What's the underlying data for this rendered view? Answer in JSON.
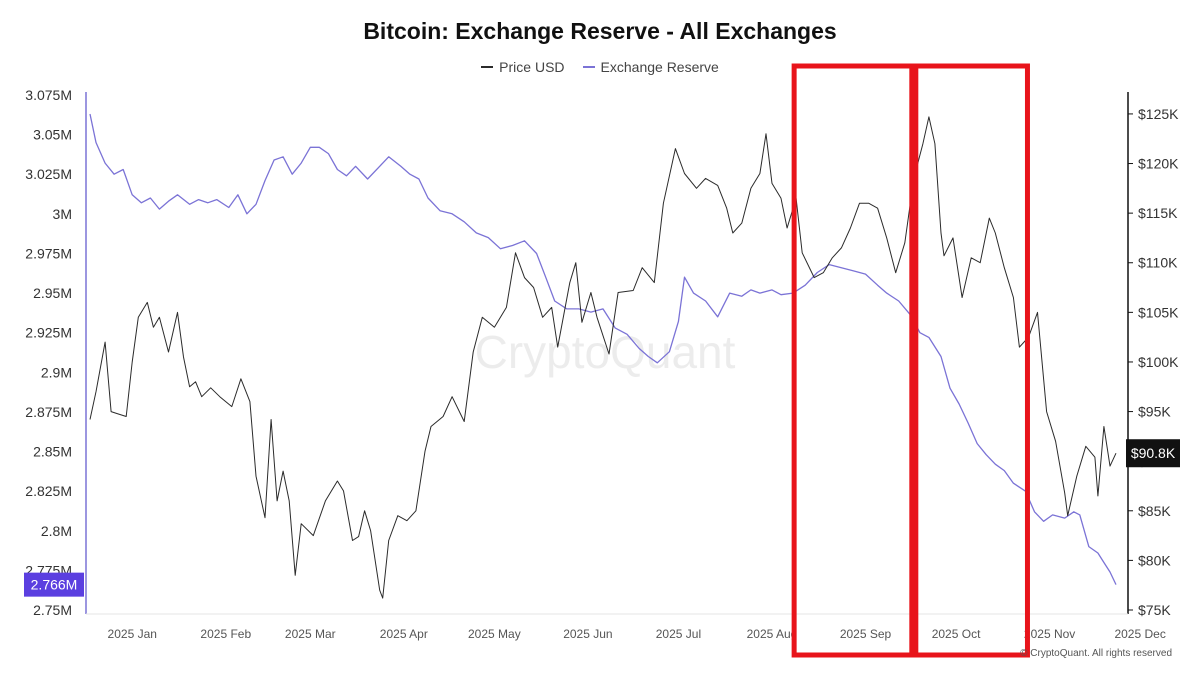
{
  "chart_data": {
    "type": "line",
    "title": "Bitcoin: Exchange Reserve - All Exchanges",
    "legend": [
      "Price USD",
      "Exchange Reserve"
    ],
    "legend_placement": "top-center",
    "colors": {
      "price": "#2b2b2b",
      "reserve": "#7b73d6",
      "highlight_box": "#e8141b",
      "badge_left": "#5b3fe0",
      "badge_right": "#111111"
    },
    "grid": false,
    "watermark": "CryptoQuant",
    "copyright": "© CryptoQuant. All rights reserved",
    "x_labels": [
      "2025 Jan",
      "2025 Feb",
      "2025 Mar",
      "2025 Apr",
      "2025 May",
      "2025 Jun",
      "2025 Jul",
      "2025 Aug",
      "2025 Sep",
      "2025 Oct",
      "2025 Nov",
      "2025 Dec"
    ],
    "x_range": [
      "2025-01-01",
      "2025-12-07"
    ],
    "y_left": {
      "label": "",
      "range": [
        2750000,
        3075000
      ],
      "ticks": [
        "3.075M",
        "3.05M",
        "3.025M",
        "3M",
        "2.975M",
        "2.95M",
        "2.925M",
        "2.9M",
        "2.875M",
        "2.85M",
        "2.825M",
        "2.8M",
        "2.775M",
        "2.75M"
      ],
      "current_value_label": "2.766M"
    },
    "y_right": {
      "label": "",
      "range": [
        75000,
        126000
      ],
      "ticks": [
        "$125K",
        "$120K",
        "$115K",
        "$110K",
        "$105K",
        "$100K",
        "$95K",
        "$90K",
        "$85K",
        "$80K",
        "$75K"
      ],
      "current_value_label": "$90.8K"
    },
    "highlights": [
      {
        "from": "2025-08-23",
        "to": "2025-10-01"
      },
      {
        "from": "2025-10-01",
        "to": "2025-11-07"
      }
    ],
    "series": [
      {
        "name": "Price USD",
        "axis": "right",
        "points": [
          [
            "2025-01-01",
            94200
          ],
          [
            "2025-01-03",
            97000
          ],
          [
            "2025-01-06",
            102000
          ],
          [
            "2025-01-08",
            95000
          ],
          [
            "2025-01-10",
            94800
          ],
          [
            "2025-01-13",
            94500
          ],
          [
            "2025-01-15",
            100000
          ],
          [
            "2025-01-17",
            104500
          ],
          [
            "2025-01-20",
            106000
          ],
          [
            "2025-01-22",
            103500
          ],
          [
            "2025-01-24",
            104500
          ],
          [
            "2025-01-27",
            101000
          ],
          [
            "2025-01-30",
            105000
          ],
          [
            "2025-02-01",
            100500
          ],
          [
            "2025-02-03",
            97500
          ],
          [
            "2025-02-05",
            98000
          ],
          [
            "2025-02-07",
            96500
          ],
          [
            "2025-02-10",
            97400
          ],
          [
            "2025-02-13",
            96500
          ],
          [
            "2025-02-17",
            95500
          ],
          [
            "2025-02-20",
            98300
          ],
          [
            "2025-02-23",
            96000
          ],
          [
            "2025-02-25",
            88500
          ],
          [
            "2025-02-28",
            84300
          ],
          [
            "2025-03-02",
            94200
          ],
          [
            "2025-03-04",
            86000
          ],
          [
            "2025-03-06",
            89000
          ],
          [
            "2025-03-08",
            86000
          ],
          [
            "2025-03-10",
            78500
          ],
          [
            "2025-03-12",
            83700
          ],
          [
            "2025-03-16",
            82500
          ],
          [
            "2025-03-20",
            86000
          ],
          [
            "2025-03-24",
            88000
          ],
          [
            "2025-03-26",
            87000
          ],
          [
            "2025-03-29",
            82000
          ],
          [
            "2025-03-31",
            82400
          ],
          [
            "2025-04-02",
            85000
          ],
          [
            "2025-04-04",
            83000
          ],
          [
            "2025-04-07",
            77000
          ],
          [
            "2025-04-08",
            76200
          ],
          [
            "2025-04-10",
            82000
          ],
          [
            "2025-04-13",
            84500
          ],
          [
            "2025-04-16",
            84000
          ],
          [
            "2025-04-19",
            85000
          ],
          [
            "2025-04-22",
            91000
          ],
          [
            "2025-04-24",
            93500
          ],
          [
            "2025-04-28",
            94500
          ],
          [
            "2025-05-01",
            96500
          ],
          [
            "2025-05-05",
            94000
          ],
          [
            "2025-05-08",
            101000
          ],
          [
            "2025-05-11",
            104500
          ],
          [
            "2025-05-15",
            103500
          ],
          [
            "2025-05-19",
            105500
          ],
          [
            "2025-05-22",
            111000
          ],
          [
            "2025-05-25",
            108500
          ],
          [
            "2025-05-28",
            107500
          ],
          [
            "2025-05-31",
            104500
          ],
          [
            "2025-06-03",
            105500
          ],
          [
            "2025-06-05",
            101500
          ],
          [
            "2025-06-09",
            108000
          ],
          [
            "2025-06-11",
            110000
          ],
          [
            "2025-06-13",
            104000
          ],
          [
            "2025-06-16",
            107000
          ],
          [
            "2025-06-18",
            104500
          ],
          [
            "2025-06-22",
            100800
          ],
          [
            "2025-06-25",
            107000
          ],
          [
            "2025-06-30",
            107200
          ],
          [
            "2025-07-03",
            109500
          ],
          [
            "2025-07-07",
            108000
          ],
          [
            "2025-07-10",
            116000
          ],
          [
            "2025-07-14",
            121500
          ],
          [
            "2025-07-17",
            119000
          ],
          [
            "2025-07-21",
            117500
          ],
          [
            "2025-07-24",
            118500
          ],
          [
            "2025-07-28",
            117800
          ],
          [
            "2025-07-31",
            115500
          ],
          [
            "2025-08-02",
            113000
          ],
          [
            "2025-08-05",
            114000
          ],
          [
            "2025-08-08",
            117500
          ],
          [
            "2025-08-11",
            119000
          ],
          [
            "2025-08-13",
            123000
          ],
          [
            "2025-08-15",
            118000
          ],
          [
            "2025-08-18",
            116500
          ],
          [
            "2025-08-20",
            113500
          ],
          [
            "2025-08-23",
            116500
          ],
          [
            "2025-08-25",
            111000
          ],
          [
            "2025-08-29",
            108500
          ],
          [
            "2025-09-01",
            109000
          ],
          [
            "2025-09-04",
            110500
          ],
          [
            "2025-09-07",
            111500
          ],
          [
            "2025-09-10",
            113500
          ],
          [
            "2025-09-13",
            116000
          ],
          [
            "2025-09-16",
            116000
          ],
          [
            "2025-09-19",
            115500
          ],
          [
            "2025-09-22",
            112500
          ],
          [
            "2025-09-25",
            109000
          ],
          [
            "2025-09-28",
            112000
          ],
          [
            "2025-10-01",
            118500
          ],
          [
            "2025-10-04",
            122000
          ],
          [
            "2025-10-06",
            124700
          ],
          [
            "2025-10-08",
            122000
          ],
          [
            "2025-10-10",
            113000
          ],
          [
            "2025-10-11",
            110700
          ],
          [
            "2025-10-14",
            112500
          ],
          [
            "2025-10-17",
            106500
          ],
          [
            "2025-10-20",
            110500
          ],
          [
            "2025-10-23",
            110000
          ],
          [
            "2025-10-26",
            114500
          ],
          [
            "2025-10-28",
            113000
          ],
          [
            "2025-10-31",
            109500
          ],
          [
            "2025-11-03",
            106500
          ],
          [
            "2025-11-05",
            101500
          ],
          [
            "2025-11-08",
            102500
          ],
          [
            "2025-11-11",
            105000
          ],
          [
            "2025-11-14",
            95000
          ],
          [
            "2025-11-17",
            92000
          ],
          [
            "2025-11-20",
            86800
          ],
          [
            "2025-11-21",
            84500
          ],
          [
            "2025-11-24",
            88500
          ],
          [
            "2025-11-27",
            91500
          ],
          [
            "2025-11-30",
            90400
          ],
          [
            "2025-12-01",
            86500
          ],
          [
            "2025-12-03",
            93500
          ],
          [
            "2025-12-05",
            89500
          ],
          [
            "2025-12-07",
            90800
          ]
        ]
      },
      {
        "name": "Exchange Reserve",
        "axis": "left",
        "points": [
          [
            "2025-01-01",
            3.063
          ],
          [
            "2025-01-03",
            3.045
          ],
          [
            "2025-01-06",
            3.032
          ],
          [
            "2025-01-09",
            3.025
          ],
          [
            "2025-01-12",
            3.028
          ],
          [
            "2025-01-15",
            3.012
          ],
          [
            "2025-01-18",
            3.007
          ],
          [
            "2025-01-21",
            3.01
          ],
          [
            "2025-01-24",
            3.003
          ],
          [
            "2025-01-27",
            3.008
          ],
          [
            "2025-01-30",
            3.012
          ],
          [
            "2025-02-03",
            3.006
          ],
          [
            "2025-02-06",
            3.009
          ],
          [
            "2025-02-09",
            3.007
          ],
          [
            "2025-02-12",
            3.009
          ],
          [
            "2025-02-16",
            3.004
          ],
          [
            "2025-02-19",
            3.012
          ],
          [
            "2025-02-22",
            3.0
          ],
          [
            "2025-02-25",
            3.006
          ],
          [
            "2025-02-28",
            3.021
          ],
          [
            "2025-03-03",
            3.034
          ],
          [
            "2025-03-06",
            3.036
          ],
          [
            "2025-03-09",
            3.025
          ],
          [
            "2025-03-12",
            3.032
          ],
          [
            "2025-03-15",
            3.042
          ],
          [
            "2025-03-18",
            3.042
          ],
          [
            "2025-03-21",
            3.038
          ],
          [
            "2025-03-24",
            3.028
          ],
          [
            "2025-03-27",
            3.024
          ],
          [
            "2025-03-30",
            3.03
          ],
          [
            "2025-04-03",
            3.022
          ],
          [
            "2025-04-07",
            3.03
          ],
          [
            "2025-04-10",
            3.036
          ],
          [
            "2025-04-14",
            3.03
          ],
          [
            "2025-04-17",
            3.025
          ],
          [
            "2025-04-20",
            3.022
          ],
          [
            "2025-04-23",
            3.01
          ],
          [
            "2025-04-27",
            3.002
          ],
          [
            "2025-05-01",
            3.0
          ],
          [
            "2025-05-05",
            2.995
          ],
          [
            "2025-05-09",
            2.988
          ],
          [
            "2025-05-13",
            2.985
          ],
          [
            "2025-05-17",
            2.978
          ],
          [
            "2025-05-21",
            2.98
          ],
          [
            "2025-05-25",
            2.983
          ],
          [
            "2025-05-29",
            2.975
          ],
          [
            "2025-06-01",
            2.96
          ],
          [
            "2025-06-04",
            2.945
          ],
          [
            "2025-06-08",
            2.94
          ],
          [
            "2025-06-12",
            2.94
          ],
          [
            "2025-06-16",
            2.938
          ],
          [
            "2025-06-20",
            2.94
          ],
          [
            "2025-06-24",
            2.928
          ],
          [
            "2025-06-28",
            2.924
          ],
          [
            "2025-07-02",
            2.915
          ],
          [
            "2025-07-05",
            2.91
          ],
          [
            "2025-07-08",
            2.906
          ],
          [
            "2025-07-12",
            2.913
          ],
          [
            "2025-07-15",
            2.932
          ],
          [
            "2025-07-17",
            2.96
          ],
          [
            "2025-07-20",
            2.95
          ],
          [
            "2025-07-24",
            2.945
          ],
          [
            "2025-07-28",
            2.935
          ],
          [
            "2025-08-01",
            2.95
          ],
          [
            "2025-08-05",
            2.948
          ],
          [
            "2025-08-08",
            2.952
          ],
          [
            "2025-08-11",
            2.95
          ],
          [
            "2025-08-15",
            2.952
          ],
          [
            "2025-08-18",
            2.949
          ],
          [
            "2025-08-22",
            2.95
          ],
          [
            "2025-08-26",
            2.955
          ],
          [
            "2025-08-30",
            2.963
          ],
          [
            "2025-09-03",
            2.968
          ],
          [
            "2025-09-07",
            2.966
          ],
          [
            "2025-09-11",
            2.964
          ],
          [
            "2025-09-15",
            2.962
          ],
          [
            "2025-09-19",
            2.955
          ],
          [
            "2025-09-22",
            2.95
          ],
          [
            "2025-09-26",
            2.945
          ],
          [
            "2025-09-30",
            2.936
          ],
          [
            "2025-10-03",
            2.925
          ],
          [
            "2025-10-06",
            2.922
          ],
          [
            "2025-10-10",
            2.91
          ],
          [
            "2025-10-13",
            2.89
          ],
          [
            "2025-10-16",
            2.88
          ],
          [
            "2025-10-19",
            2.868
          ],
          [
            "2025-10-22",
            2.855
          ],
          [
            "2025-10-25",
            2.848
          ],
          [
            "2025-10-28",
            2.842
          ],
          [
            "2025-10-31",
            2.838
          ],
          [
            "2025-11-03",
            2.83
          ],
          [
            "2025-11-07",
            2.825
          ],
          [
            "2025-11-10",
            2.812
          ],
          [
            "2025-11-13",
            2.806
          ],
          [
            "2025-11-16",
            2.81
          ],
          [
            "2025-11-20",
            2.808
          ],
          [
            "2025-11-23",
            2.812
          ],
          [
            "2025-11-25",
            2.81
          ],
          [
            "2025-11-28",
            2.79
          ],
          [
            "2025-12-01",
            2.786
          ],
          [
            "2025-12-03",
            2.78
          ],
          [
            "2025-12-05",
            2.774
          ],
          [
            "2025-12-07",
            2.766
          ]
        ]
      }
    ]
  }
}
